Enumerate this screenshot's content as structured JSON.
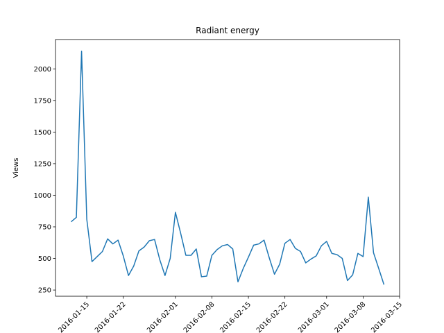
{
  "chart_data": {
    "type": "line",
    "title": "Radiant energy",
    "y_label": "Views",
    "x": [
      "2016-01-12",
      "2016-01-13",
      "2016-01-14",
      "2016-01-15",
      "2016-01-16",
      "2016-01-17",
      "2016-01-18",
      "2016-01-19",
      "2016-01-20",
      "2016-01-21",
      "2016-01-22",
      "2016-01-23",
      "2016-01-24",
      "2016-01-25",
      "2016-01-26",
      "2016-01-27",
      "2016-01-28",
      "2016-01-29",
      "2016-01-30",
      "2016-01-31",
      "2016-02-01",
      "2016-02-02",
      "2016-02-03",
      "2016-02-04",
      "2016-02-05",
      "2016-02-06",
      "2016-02-07",
      "2016-02-08",
      "2016-02-09",
      "2016-02-10",
      "2016-02-11",
      "2016-02-12",
      "2016-02-13",
      "2016-02-14",
      "2016-02-15",
      "2016-02-16",
      "2016-02-17",
      "2016-02-18",
      "2016-02-19",
      "2016-02-20",
      "2016-02-21",
      "2016-02-22",
      "2016-02-23",
      "2016-02-24",
      "2016-02-25",
      "2016-02-26",
      "2016-02-27",
      "2016-02-28",
      "2016-02-29",
      "2016-03-01",
      "2016-03-02",
      "2016-03-03",
      "2016-03-04",
      "2016-03-05",
      "2016-03-06",
      "2016-03-07",
      "2016-03-08",
      "2016-03-09",
      "2016-03-10",
      "2016-03-11",
      "2016-03-12"
    ],
    "series": [
      {
        "name": "Views",
        "color": "#1f77b4",
        "values": [
          790,
          825,
          2140,
          810,
          475,
          515,
          555,
          655,
          615,
          645,
          520,
          365,
          440,
          560,
          590,
          640,
          650,
          490,
          365,
          500,
          865,
          700,
          525,
          525,
          575,
          355,
          360,
          525,
          570,
          600,
          610,
          575,
          315,
          420,
          510,
          605,
          615,
          645,
          505,
          375,
          455,
          620,
          650,
          580,
          555,
          465,
          495,
          520,
          600,
          635,
          540,
          530,
          500,
          325,
          370,
          540,
          515,
          985,
          545,
          420,
          293
        ]
      }
    ],
    "xlim": [
      "2016-01-09",
      "2016-03-15"
    ],
    "xticks": [
      "2016-01-15",
      "2016-01-22",
      "2016-02-01",
      "2016-02-08",
      "2016-02-15",
      "2016-02-22",
      "2016-03-01",
      "2016-03-08",
      "2016-03-15"
    ],
    "ylim": [
      201,
      2232
    ],
    "yticks": [
      250,
      500,
      750,
      1000,
      1250,
      1500,
      1750,
      2000
    ]
  }
}
